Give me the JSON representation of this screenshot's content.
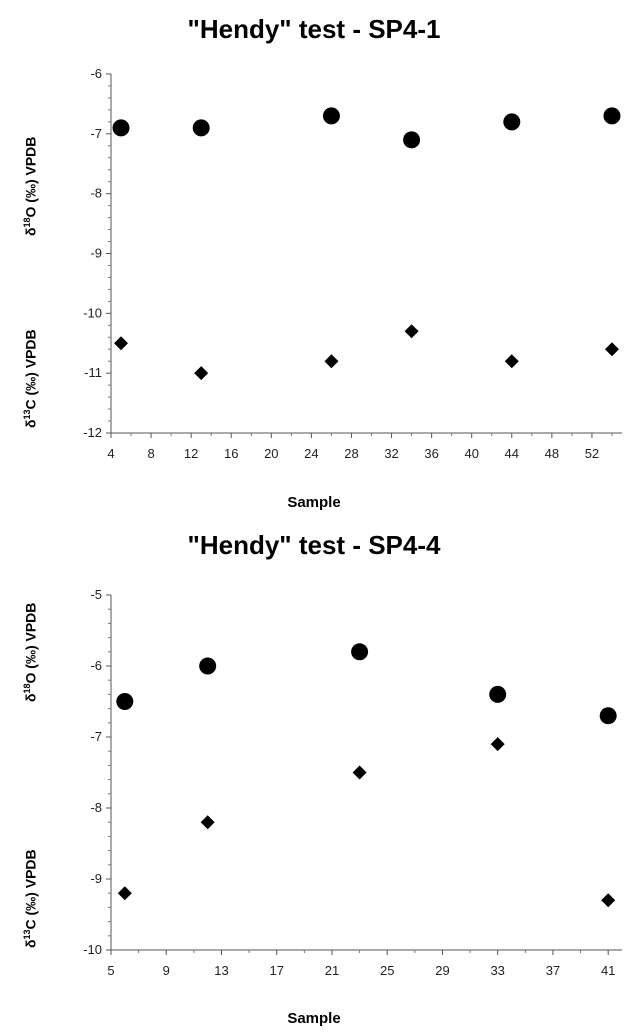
{
  "chart_data": [
    {
      "type": "scatter",
      "title": "\"Hendy\" test - SP4-1",
      "xlabel": "Sample",
      "ylabels": [
        {
          "prefix": "δ",
          "sup": "18",
          "rest": "O (‰) VPDB"
        },
        {
          "prefix": "δ",
          "sup": "13",
          "rest": "C (‰) VPDB"
        }
      ],
      "xlim": [
        4,
        55
      ],
      "xticks": [
        4,
        8,
        12,
        16,
        20,
        24,
        28,
        32,
        36,
        40,
        44,
        48,
        52
      ],
      "ylim": [
        -12,
        -6
      ],
      "yticks": [
        -12,
        -11,
        -10,
        -9,
        -8,
        -7,
        -6
      ],
      "series": [
        {
          "marker": "circle",
          "x": [
            5,
            13,
            26,
            34,
            44,
            54
          ],
          "y": [
            -6.9,
            -6.9,
            -6.7,
            -7.1,
            -6.8,
            -6.7
          ]
        },
        {
          "marker": "diamond",
          "x": [
            5,
            13,
            26,
            34,
            44,
            54
          ],
          "y": [
            -10.5,
            -11.0,
            -10.8,
            -10.3,
            -10.8,
            -10.6
          ]
        }
      ],
      "grid": false,
      "marker_color": "#000000"
    },
    {
      "type": "scatter",
      "title": "\"Hendy\" test - SP4-4",
      "xlabel": "Sample",
      "ylabels": [
        {
          "prefix": "δ",
          "sup": "18",
          "rest": "O (‰) VPDB"
        },
        {
          "prefix": "δ",
          "sup": "13",
          "rest": "C (‰) VPDB"
        }
      ],
      "xlim": [
        5,
        42
      ],
      "xticks": [
        5,
        9,
        13,
        17,
        21,
        25,
        29,
        33,
        37,
        41
      ],
      "ylim": [
        -10,
        -5
      ],
      "yticks": [
        -10,
        -9,
        -8,
        -7,
        -6,
        -5
      ],
      "series": [
        {
          "marker": "circle",
          "x": [
            6,
            12,
            23,
            33,
            41
          ],
          "y": [
            -6.5,
            -6.0,
            -5.8,
            -6.4,
            -6.7
          ]
        },
        {
          "marker": "diamond",
          "x": [
            6,
            12,
            23,
            33,
            41
          ],
          "y": [
            -9.2,
            -8.2,
            -7.5,
            -7.1,
            -9.3
          ]
        }
      ],
      "grid": false,
      "marker_color": "#000000"
    }
  ]
}
